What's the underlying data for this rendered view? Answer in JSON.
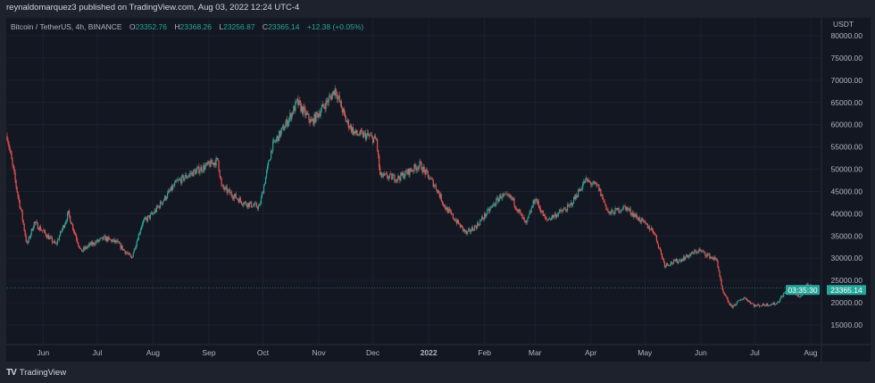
{
  "header": {
    "published": "reynaldomarquez3 published on TradingView.com, Aug 03, 2022 12:24 UTC-4"
  },
  "legend": {
    "symbol": "Bitcoin / TetherUS, 4h, BINANCE",
    "o_label": "O",
    "o": "23352.76",
    "h_label": "H",
    "h": "23368.26",
    "l_label": "L",
    "l": "23256.87",
    "c_label": "C",
    "c": "23365.14",
    "change": "+12.38 (+0.05%)"
  },
  "footer": {
    "brand": "TradingView",
    "logo_mark": "17"
  },
  "chart_data": {
    "type": "candlestick",
    "title": "Bitcoin / TetherUS, 4h, BINANCE",
    "currency_label": "USDT",
    "ylim": [
      15000,
      80000
    ],
    "y_ticks": [
      "80000.00",
      "75000.00",
      "70000.00",
      "65000.00",
      "60000.00",
      "55000.00",
      "50000.00",
      "45000.00",
      "40000.00",
      "35000.00",
      "30000.00",
      "25000.00",
      "20000.00",
      "15000.00"
    ],
    "x_ticks": [
      {
        "label": "Jun",
        "date": "2021-06-01"
      },
      {
        "label": "Jul",
        "date": "2021-07-01"
      },
      {
        "label": "Aug",
        "date": "2021-08-01"
      },
      {
        "label": "Sep",
        "date": "2021-09-01"
      },
      {
        "label": "Oct",
        "date": "2021-10-01"
      },
      {
        "label": "Nov",
        "date": "2021-11-01"
      },
      {
        "label": "Dec",
        "date": "2021-12-01"
      },
      {
        "label": "2022",
        "date": "2022-01-01"
      },
      {
        "label": "Feb",
        "date": "2022-02-01"
      },
      {
        "label": "Mar",
        "date": "2022-03-01"
      },
      {
        "label": "Apr",
        "date": "2022-04-01"
      },
      {
        "label": "May",
        "date": "2022-05-01"
      },
      {
        "label": "Jun",
        "date": "2022-06-01"
      },
      {
        "label": "Jul",
        "date": "2022-07-01"
      },
      {
        "label": "Aug",
        "date": "2022-08-01"
      }
    ],
    "xlim": [
      "2021-05-12",
      "2022-08-05"
    ],
    "last_price": "23365.14",
    "countdown": "03:35:30",
    "colors": {
      "up": "#26a69a",
      "down": "#ef5350",
      "background": "#131722",
      "grid": "#1c2030"
    },
    "grid": true,
    "price_path": [
      [
        "2021-05-12",
        57500
      ],
      [
        "2021-05-18",
        44000
      ],
      [
        "2021-05-20",
        40000
      ],
      [
        "2021-05-23",
        33000
      ],
      [
        "2021-05-27",
        38000
      ],
      [
        "2021-06-01",
        36000
      ],
      [
        "2021-06-08",
        33000
      ],
      [
        "2021-06-15",
        40000
      ],
      [
        "2021-06-22",
        31500
      ],
      [
        "2021-06-27",
        33000
      ],
      [
        "2021-07-05",
        34500
      ],
      [
        "2021-07-12",
        33500
      ],
      [
        "2021-07-20",
        30000
      ],
      [
        "2021-07-26",
        38000
      ],
      [
        "2021-08-01",
        40000
      ],
      [
        "2021-08-14",
        47000
      ],
      [
        "2021-08-22",
        49000
      ],
      [
        "2021-09-06",
        52000
      ],
      [
        "2021-09-08",
        46000
      ],
      [
        "2021-09-20",
        42500
      ],
      [
        "2021-09-29",
        41500
      ],
      [
        "2021-10-06",
        55000
      ],
      [
        "2021-10-15",
        61000
      ],
      [
        "2021-10-20",
        65000
      ],
      [
        "2021-10-28",
        60500
      ],
      [
        "2021-11-08",
        66500
      ],
      [
        "2021-11-10",
        68000
      ],
      [
        "2021-11-16",
        61000
      ],
      [
        "2021-11-21",
        58000
      ],
      [
        "2021-11-28",
        57500
      ],
      [
        "2021-12-03",
        56500
      ],
      [
        "2021-12-05",
        48500
      ],
      [
        "2021-12-15",
        48000
      ],
      [
        "2021-12-27",
        51000
      ],
      [
        "2022-01-05",
        46000
      ],
      [
        "2022-01-10",
        41500
      ],
      [
        "2022-01-22",
        35500
      ],
      [
        "2022-01-28",
        37500
      ],
      [
        "2022-02-10",
        44000
      ],
      [
        "2022-02-16",
        43500
      ],
      [
        "2022-02-24",
        37500
      ],
      [
        "2022-03-01",
        43500
      ],
      [
        "2022-03-07",
        38500
      ],
      [
        "2022-03-20",
        41500
      ],
      [
        "2022-03-29",
        47500
      ],
      [
        "2022-04-05",
        46000
      ],
      [
        "2022-04-11",
        40000
      ],
      [
        "2022-04-20",
        41500
      ],
      [
        "2022-04-30",
        38000
      ],
      [
        "2022-05-06",
        36000
      ],
      [
        "2022-05-12",
        28500
      ],
      [
        "2022-05-20",
        29500
      ],
      [
        "2022-05-31",
        31800
      ],
      [
        "2022-06-10",
        29500
      ],
      [
        "2022-06-13",
        22500
      ],
      [
        "2022-06-18",
        19000
      ],
      [
        "2022-06-25",
        21200
      ],
      [
        "2022-07-01",
        19300
      ],
      [
        "2022-07-13",
        19800
      ],
      [
        "2022-07-20",
        23500
      ],
      [
        "2022-07-26",
        21200
      ],
      [
        "2022-07-30",
        24000
      ],
      [
        "2022-08-03",
        23365
      ]
    ]
  }
}
